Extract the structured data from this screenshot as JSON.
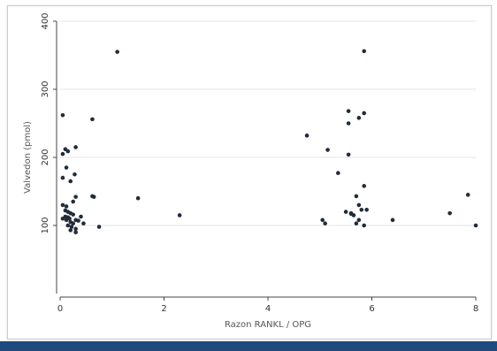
{
  "chart_data": {
    "type": "scatter",
    "title": "",
    "xlabel": "Razon RANKL / OPG",
    "ylabel": "Valvedon (pmol)",
    "xlim": [
      0,
      8
    ],
    "ylim": [
      0,
      400
    ],
    "x_ticks": [
      "0",
      "2",
      "4",
      "6",
      "8"
    ],
    "y_ticks": [
      "100",
      "200",
      "300",
      "400"
    ],
    "grid": true,
    "legend": "none",
    "marker_color": "#222c3a",
    "series": [
      {
        "x": [
          1.1,
          0.05,
          0.62,
          0.1,
          0.3,
          0.05,
          0.15,
          0.12,
          0.28,
          0.05,
          0.2,
          0.62,
          0.65,
          0.3,
          0.25,
          0.05,
          0.12,
          1.5,
          0.1,
          0.15,
          0.2,
          0.25,
          0.1,
          0.15,
          0.18,
          0.3,
          0.4,
          0.05,
          0.12,
          0.2,
          0.25,
          0.35,
          0.45,
          0.15,
          0.22,
          0.3,
          0.75,
          0.2,
          0.3,
          2.3,
          5.85,
          5.55,
          5.85,
          5.75,
          5.55,
          4.75,
          5.15,
          5.55,
          5.35,
          5.85,
          5.7,
          5.9,
          5.6,
          5.75,
          5.5,
          5.65,
          5.8,
          5.6,
          5.75,
          5.05,
          5.1,
          5.7,
          5.85,
          6.4,
          7.5,
          7.85,
          8.0
        ],
        "y": [
          355,
          262,
          256,
          212,
          215,
          205,
          209,
          185,
          175,
          170,
          165,
          143,
          142,
          142,
          135,
          130,
          128,
          140,
          122,
          120,
          118,
          116,
          113,
          112,
          110,
          108,
          113,
          110,
          108,
          105,
          103,
          107,
          103,
          100,
          98,
          95,
          98,
          93,
          90,
          115,
          356,
          268,
          265,
          258,
          250,
          232,
          211,
          204,
          177,
          158,
          143,
          123,
          117,
          130,
          120,
          115,
          123,
          118,
          108,
          108,
          103,
          103,
          100,
          108,
          118,
          145,
          100
        ]
      }
    ]
  }
}
